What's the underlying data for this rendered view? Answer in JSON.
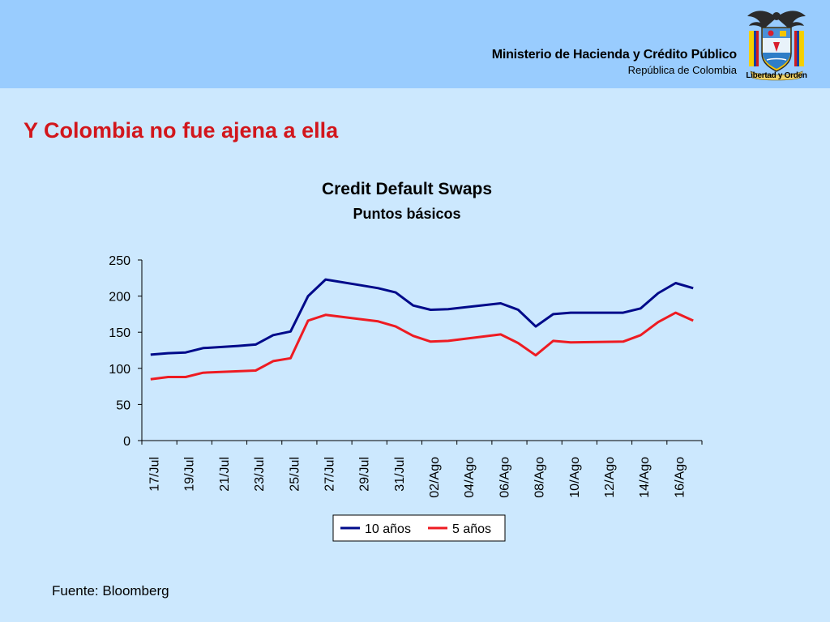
{
  "header": {
    "ministry": "Ministerio de Hacienda y Crédito Público",
    "country": "República de Colombia",
    "motto": "Libertad y Orden"
  },
  "slide_title": "Y Colombia no fue ajena a ella",
  "source": "Fuente: Bloomberg",
  "colors": {
    "header_bg": "#99ccfe",
    "page_bg": "#cce8fe",
    "title_red": "#d2161c",
    "series_10": "#000a8a",
    "series_5": "#ee1b22"
  },
  "chart_data": {
    "type": "line",
    "title": "Credit Default Swaps",
    "subtitle": "Puntos básicos",
    "xlabel": "",
    "ylabel": "",
    "ylim": [
      0,
      250
    ],
    "yticks": [
      0,
      50,
      100,
      150,
      200,
      250
    ],
    "grid": false,
    "legend": "bottom-center",
    "x": [
      "17/Jul",
      "18/Jul",
      "19/Jul",
      "20/Jul",
      "21/Jul",
      "22/Jul",
      "23/Jul",
      "24/Jul",
      "25/Jul",
      "26/Jul",
      "27/Jul",
      "28/Jul",
      "29/Jul",
      "30/Jul",
      "31/Jul",
      "01/Ago",
      "02/Ago",
      "03/Ago",
      "04/Ago",
      "05/Ago",
      "06/Ago",
      "07/Ago",
      "08/Ago",
      "09/Ago",
      "10/Ago",
      "11/Ago",
      "12/Ago",
      "13/Ago",
      "14/Ago",
      "15/Ago",
      "16/Ago",
      "17/Ago"
    ],
    "tick_labels": [
      "17/Jul",
      "19/Jul",
      "21/Jul",
      "23/Jul",
      "25/Jul",
      "27/Jul",
      "29/Jul",
      "31/Jul",
      "02/Ago",
      "04/Ago",
      "06/Ago",
      "08/Ago",
      "10/Ago",
      "12/Ago",
      "14/Ago",
      "16/Ago"
    ],
    "series": [
      {
        "name": "10 años",
        "color": "#000a8a",
        "points": [
          [
            0,
            119
          ],
          [
            1,
            121
          ],
          [
            2,
            122
          ],
          [
            3,
            128
          ],
          [
            5,
            131
          ],
          [
            6,
            133
          ],
          [
            7,
            146
          ],
          [
            8,
            151
          ],
          [
            9,
            200
          ],
          [
            10,
            223
          ],
          [
            12,
            215
          ],
          [
            13,
            211
          ],
          [
            14,
            205
          ],
          [
            15,
            187
          ],
          [
            16,
            181
          ],
          [
            17,
            182
          ],
          [
            20,
            190
          ],
          [
            21,
            181
          ],
          [
            22,
            158
          ],
          [
            23,
            175
          ],
          [
            24,
            177
          ],
          [
            27,
            177
          ],
          [
            28,
            183
          ],
          [
            29,
            204
          ],
          [
            30,
            218
          ],
          [
            31,
            211
          ]
        ]
      },
      {
        "name": "5 años",
        "color": "#ee1b22",
        "points": [
          [
            0,
            85
          ],
          [
            1,
            88
          ],
          [
            2,
            88
          ],
          [
            3,
            94
          ],
          [
            5,
            96
          ],
          [
            6,
            97
          ],
          [
            7,
            110
          ],
          [
            8,
            114
          ],
          [
            9,
            166
          ],
          [
            10,
            174
          ],
          [
            12,
            168
          ],
          [
            13,
            165
          ],
          [
            14,
            158
          ],
          [
            15,
            145
          ],
          [
            16,
            137
          ],
          [
            17,
            138
          ],
          [
            20,
            147
          ],
          [
            21,
            135
          ],
          [
            22,
            118
          ],
          [
            23,
            138
          ],
          [
            24,
            136
          ],
          [
            27,
            137
          ],
          [
            28,
            146
          ],
          [
            29,
            164
          ],
          [
            30,
            177
          ],
          [
            31,
            166
          ]
        ]
      }
    ]
  }
}
